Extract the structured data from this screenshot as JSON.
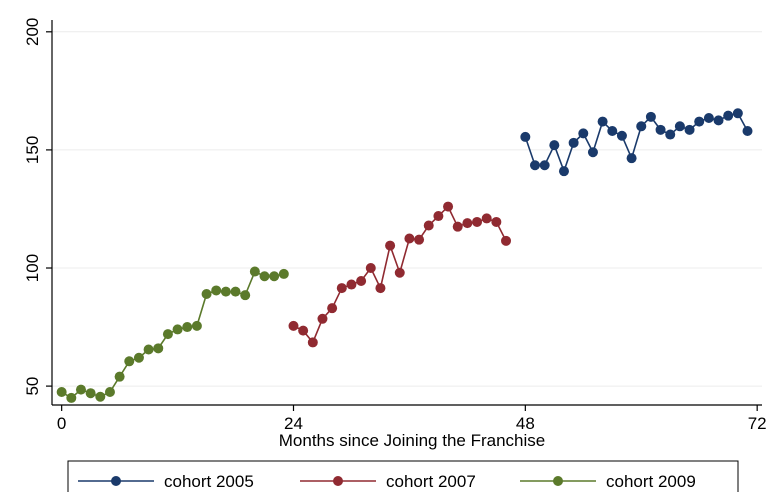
{
  "chart_data": {
    "type": "line",
    "title": "",
    "xlabel": "Months since Joining the Franchise",
    "ylabel": "",
    "xlim": [
      -1,
      72.5
    ],
    "ylim": [
      42,
      205
    ],
    "xticks": [
      0,
      24,
      48,
      72
    ],
    "yticks": [
      50,
      100,
      150,
      200
    ],
    "grid": "horizontal",
    "legend_position": "bottom",
    "series": [
      {
        "name": "cohort 2005",
        "color": "#1a3a6b",
        "x": [
          48,
          49,
          50,
          51,
          52,
          53,
          54,
          55,
          56,
          57,
          58,
          59,
          60,
          61,
          62,
          63,
          64,
          65,
          66,
          67,
          68,
          69,
          70,
          71
        ],
        "y": [
          155.5,
          143.5,
          143.5,
          152,
          141,
          153,
          157,
          149,
          162,
          158,
          156,
          146.5,
          160,
          164,
          158.5,
          156.5,
          160,
          158.5,
          162,
          163.5,
          162.5,
          164.5,
          165.5,
          158
        ]
      },
      {
        "name": "cohort 2007",
        "color": "#902a31",
        "x": [
          24,
          25,
          26,
          27,
          28,
          29,
          30,
          31,
          32,
          33,
          34,
          35,
          36,
          37,
          38,
          39,
          40,
          41,
          42,
          43,
          44,
          45,
          46
        ],
        "y": [
          75.5,
          73.5,
          68.5,
          78.5,
          83,
          91.5,
          93,
          94.5,
          100,
          91.5,
          109.5,
          98,
          112.5,
          112,
          118,
          122,
          126,
          117.5,
          119,
          119.5,
          121,
          119.5,
          111.5
        ]
      },
      {
        "name": "cohort 2009",
        "color": "#5b7a2b",
        "x": [
          0,
          1,
          2,
          3,
          4,
          5,
          6,
          7,
          8,
          9,
          10,
          11,
          12,
          13,
          14,
          15,
          16,
          17,
          18,
          19,
          20,
          21,
          22,
          23
        ],
        "y": [
          47.5,
          45,
          48.5,
          47,
          45.5,
          47.5,
          54,
          60.5,
          62,
          65.5,
          66,
          72,
          74,
          75,
          75.5,
          89,
          90.5,
          90,
          90,
          88.5,
          98.5,
          96.5,
          96.5,
          97.5
        ]
      }
    ]
  }
}
